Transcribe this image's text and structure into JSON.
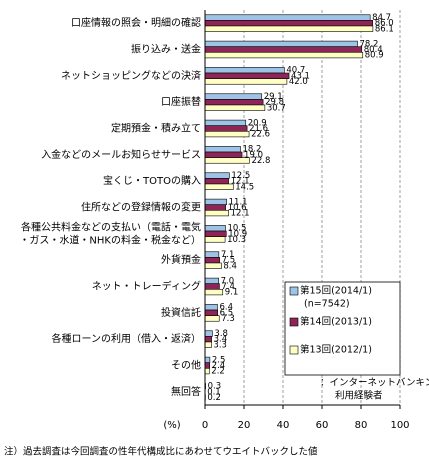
{
  "chart_data": {
    "type": "hbar",
    "categories": [
      "口座情報の照会・明細の確認",
      "振り込み・送金",
      "ネットショッピングなどの決済",
      "口座振替",
      "定期預金・積み立て",
      "入金などのメールお知らせサービス",
      "宝くじ・TOTOの購入",
      "住所などの登録情報の変更",
      "各種公共料金などの支払い（電話・電気\n・ガス・水道・NHKの料金・税金など）",
      "外貨預金",
      "ネット・トレーディング",
      "投資信託",
      "各種ローンの利用（借入・返済）",
      "その他",
      "無回答"
    ],
    "series": [
      {
        "name": "第15回(2014/1)",
        "note": "(n=7542)",
        "color": "#9dc3e6",
        "values": [
          84.7,
          78.2,
          40.7,
          29.1,
          20.9,
          18.2,
          12.5,
          11.1,
          10.5,
          7.1,
          7.0,
          6.4,
          3.8,
          2.5,
          0.3
        ],
        "value_labels": [
          "84.7",
          "78.2",
          "40.7",
          "29.1",
          "20.9",
          "18.2",
          "12.5",
          "11.1",
          "10.5",
          "7.1",
          "7.0",
          "6.4",
          "3.8",
          "2.5",
          "0.3"
        ]
      },
      {
        "name": "第14回(2013/1)",
        "color": "#8e2556",
        "values": [
          86.0,
          80.4,
          43.1,
          29.8,
          21.6,
          19.0,
          12.1,
          10.6,
          10.9,
          7.5,
          7.4,
          6.5,
          3.4,
          2.4,
          0.1
        ],
        "value_labels": [
          "86.0",
          "80.4",
          "43.1",
          "29.8",
          "21.6",
          "19.0",
          "12.1",
          "10.6",
          "10.9",
          "7.5",
          "7.4",
          "6.5",
          "3.4",
          "2.4",
          "0.1"
        ]
      },
      {
        "name": "第13回(2012/1)",
        "color": "#ffffc4",
        "values": [
          86.1,
          80.9,
          42.0,
          30.7,
          22.6,
          22.8,
          14.5,
          12.1,
          10.3,
          8.4,
          9.1,
          7.3,
          3.3,
          2.2,
          0.2
        ],
        "value_labels": [
          "86.1",
          "80.9",
          "42.0",
          "30.7",
          "22.6",
          "22.8",
          "14.5",
          "12.1",
          "10.3",
          "8.4",
          "9.1",
          "7.3",
          "3.3",
          "2.2",
          "0.2"
        ]
      }
    ],
    "legend_caption": [
      "：インターネットバンキング",
      "利用経験者"
    ],
    "xlabel": "(%)",
    "xlim": [
      0,
      100
    ],
    "xticks": [
      0,
      20,
      40,
      60,
      80,
      100
    ],
    "grid": true,
    "footnote": "注）過去調査は今回調査の性年代構成比にあわせてウエイトバックした値"
  }
}
